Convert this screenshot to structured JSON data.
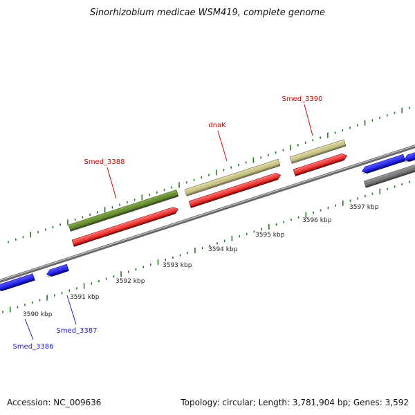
{
  "title": "Sinorhizobium medicae WSM419, complete genome",
  "footer": {
    "accession": "Accession: NC_009636",
    "summary": "Topology: circular; Length: 3,781,904 bp; Genes: 3,592"
  },
  "scale_labels": [
    "3590 kbp",
    "3591 kbp",
    "3592 kbp",
    "3593 kbp",
    "3594 kbp",
    "3595 kbp",
    "3596 kbp",
    "3597 kbp"
  ],
  "gene_labels": [
    {
      "name": "Smed_3386",
      "color": "#1a1acc"
    },
    {
      "name": "Smed_3387",
      "color": "#1a1acc"
    },
    {
      "name": "Smed_3388",
      "color": "#cc0000"
    },
    {
      "name": "dnaK",
      "color": "#cc0000"
    },
    {
      "name": "Smed_3390",
      "color": "#cc0000"
    }
  ],
  "colors": {
    "forward_gene": "#ff0000",
    "reverse_gene": "#0000ee",
    "other_gene": "#777777",
    "cog_green": "#5f8a2a",
    "cog_khaki": "#c9c48a",
    "backbone": "#888888",
    "ticks": "#227722"
  }
}
